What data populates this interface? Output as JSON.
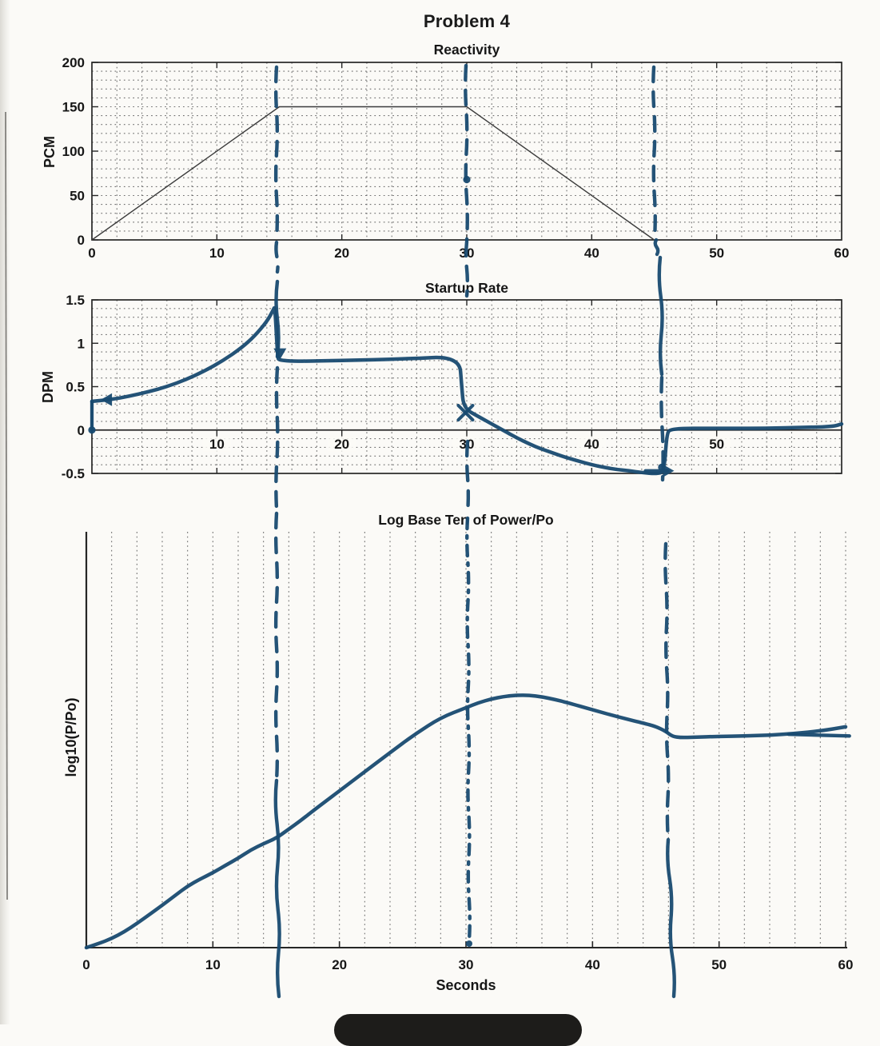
{
  "page": {
    "title": "Problem 4"
  },
  "colors": {
    "hand_ink": "#184a70",
    "printed_line": "#3b3b3b",
    "axis": "#262626",
    "grid_dot": "#6f6f6f",
    "text": "#161616",
    "page_bg": "#fbfaf7",
    "pill": "#1d1c1a",
    "scan_edge": "#54524e"
  },
  "chart_data": [
    {
      "id": "reactivity",
      "type": "line",
      "title": "Reactivity",
      "ylabel": "PCM",
      "xlabel": "",
      "xlim": [
        0,
        60
      ],
      "ylim": [
        0,
        200
      ],
      "xticks": [
        0,
        10,
        20,
        30,
        40,
        50,
        60
      ],
      "yticks": [
        0,
        50,
        100,
        150,
        200
      ],
      "grid": "dotted, 2 s vertical x 10 PCM horizontal, boxed axes",
      "printed_series": {
        "name": "reactivity-program-pcm",
        "points": [
          [
            0,
            0
          ],
          [
            15,
            150
          ],
          [
            30,
            150
          ],
          [
            45,
            0
          ],
          [
            60,
            0
          ]
        ]
      },
      "hand_marks": [
        {
          "type": "dot",
          "at": [
            30,
            68
          ]
        }
      ]
    },
    {
      "id": "startup_rate",
      "type": "line",
      "title": "Startup Rate",
      "ylabel": "DPM",
      "xlabel": "",
      "xlim": [
        0,
        60
      ],
      "ylim": [
        -0.5,
        1.5
      ],
      "inner_xticks": [
        10,
        20,
        30,
        40,
        50
      ],
      "yticks": [
        -0.5,
        0,
        0.5,
        1,
        1.5
      ],
      "grid": "dotted, 2 s vertical x 0.1 DPM horizontal, boxed axes, solid zero line",
      "hand_series": {
        "name": "startup-rate-dpm-hand-drawn",
        "points": [
          [
            0,
            0.33
          ],
          [
            1.5,
            0.35
          ],
          [
            3,
            0.39
          ],
          [
            4.5,
            0.44
          ],
          [
            6,
            0.5
          ],
          [
            7.5,
            0.58
          ],
          [
            9,
            0.68
          ],
          [
            10.5,
            0.8
          ],
          [
            12,
            0.95
          ],
          [
            13,
            1.08
          ],
          [
            14,
            1.25
          ],
          [
            14.5,
            1.38
          ],
          [
            14.65,
            1.43
          ],
          [
            14.85,
            0.85
          ],
          [
            15,
            0.79
          ],
          [
            20,
            0.8
          ],
          [
            25,
            0.82
          ],
          [
            29.4,
            0.85
          ],
          [
            29.6,
            0.5
          ],
          [
            29.75,
            0.25
          ],
          [
            31,
            0.15
          ],
          [
            32,
            0.07
          ],
          [
            33,
            -0.01
          ],
          [
            34,
            -0.09
          ],
          [
            35,
            -0.16
          ],
          [
            36,
            -0.22
          ],
          [
            37,
            -0.27
          ],
          [
            38,
            -0.32
          ],
          [
            39,
            -0.36
          ],
          [
            40,
            -0.4
          ],
          [
            41,
            -0.43
          ],
          [
            42,
            -0.455
          ],
          [
            43,
            -0.47
          ],
          [
            44,
            -0.49
          ],
          [
            45.2,
            -0.505
          ],
          [
            45.8,
            -0.48
          ],
          [
            46,
            -0.05
          ],
          [
            46.3,
            0.02
          ],
          [
            50,
            0.02
          ],
          [
            54,
            0.02
          ],
          [
            57,
            0.03
          ],
          [
            59.3,
            0.04
          ],
          [
            60,
            0.07
          ]
        ]
      },
      "hand_marks": [
        {
          "type": "dot",
          "at": [
            0,
            0
          ]
        },
        {
          "type": "stroke",
          "from": [
            0,
            0
          ],
          "to": [
            0,
            0.33
          ]
        },
        {
          "type": "arrow",
          "at": [
            0.9,
            0.35
          ],
          "dir": "left"
        },
        {
          "type": "arrow",
          "at": [
            15.05,
            0.84
          ],
          "dir": "down"
        },
        {
          "type": "x",
          "at": [
            29.9,
            0.2
          ]
        },
        {
          "type": "stroke",
          "from": [
            44.3,
            -0.47
          ],
          "to": [
            46.1,
            -0.47
          ]
        },
        {
          "type": "arrow",
          "at": [
            46.4,
            -0.47
          ],
          "dir": "right"
        },
        {
          "type": "dot",
          "at": [
            45.6,
            -0.43
          ]
        }
      ]
    },
    {
      "id": "log_power",
      "type": "line",
      "title": "Log Base Ten of Power/Po",
      "ylabel": "log10(P/Po)",
      "xlabel": "Seconds",
      "xlim": [
        0,
        60
      ],
      "xticks": [
        0,
        10,
        20,
        30,
        40,
        50,
        60
      ],
      "yticks": [],
      "y_units": "unlabeled axis, values normalized 0-1 of plot height",
      "grid": "dotted vertical lines every 2 s only, open top/right",
      "hand_series": {
        "name": "log-power-hand-drawn",
        "points": [
          [
            0,
            0
          ],
          [
            1,
            0.01
          ],
          [
            2,
            0.022
          ],
          [
            3,
            0.038
          ],
          [
            4,
            0.058
          ],
          [
            5,
            0.08
          ],
          [
            6,
            0.102
          ],
          [
            7,
            0.125
          ],
          [
            8,
            0.148
          ],
          [
            9,
            0.165
          ],
          [
            10,
            0.18
          ],
          [
            11,
            0.198
          ],
          [
            12,
            0.215
          ],
          [
            13,
            0.235
          ],
          [
            14,
            0.25
          ],
          [
            15,
            0.263
          ],
          [
            16,
            0.285
          ],
          [
            17,
            0.307
          ],
          [
            18,
            0.331
          ],
          [
            19,
            0.354
          ],
          [
            20,
            0.377
          ],
          [
            22,
            0.423
          ],
          [
            24,
            0.469
          ],
          [
            26,
            0.514
          ],
          [
            28,
            0.553
          ],
          [
            30,
            0.577
          ],
          [
            31,
            0.589
          ],
          [
            32,
            0.598
          ],
          [
            33,
            0.604
          ],
          [
            34,
            0.607
          ],
          [
            35,
            0.607
          ],
          [
            36,
            0.603
          ],
          [
            37,
            0.597
          ],
          [
            38,
            0.589
          ],
          [
            40,
            0.572
          ],
          [
            42,
            0.555
          ],
          [
            44,
            0.54
          ],
          [
            45,
            0.532
          ],
          [
            45.8,
            0.52
          ],
          [
            46.3,
            0.508
          ],
          [
            47,
            0.505
          ],
          [
            48,
            0.506
          ],
          [
            50,
            0.508
          ],
          [
            52,
            0.509
          ],
          [
            54,
            0.511
          ],
          [
            56,
            0.515
          ],
          [
            58,
            0.521
          ],
          [
            60,
            0.531
          ]
        ]
      },
      "hand_marks": [
        {
          "type": "stroke",
          "from": [
            55.5,
            0.513
          ],
          "to": [
            60.3,
            0.509
          ]
        }
      ]
    }
  ],
  "hand_annotations": {
    "description": "blue marker dashed vertical guide lines at t = 15, 30 and ~46 s drawn across all three plots",
    "lines": [
      {
        "t": 15,
        "segments": [
          [
            346,
            84,
            346,
            300,
            "dashed"
          ],
          [
            346,
            303,
            347,
            340,
            "dashed"
          ],
          [
            347,
            352,
            347,
            446,
            "solid"
          ],
          [
            347,
            460,
            346,
            636,
            "dashed"
          ],
          [
            346,
            642,
            346,
            976,
            "dashed"
          ],
          [
            346,
            976,
            349,
            1246,
            "solid"
          ]
        ],
        "dots": []
      },
      {
        "t": 30,
        "segments": [
          [
            583,
            82,
            584,
            300,
            "dashed"
          ],
          [
            584,
            302,
            584,
            370,
            "dashed"
          ],
          [
            585,
            552,
            585,
            642,
            "dashed"
          ],
          [
            585,
            648,
            587,
            1176,
            "dashdot"
          ]
        ],
        "dots": [
          [
            587,
            1180
          ]
        ]
      },
      {
        "t": 46,
        "segments": [
          [
            818,
            84,
            819,
            298,
            "dashed"
          ],
          [
            821,
            300,
            822,
            318,
            "solid"
          ],
          [
            826,
            322,
            828,
            468,
            "solid"
          ],
          [
            828,
            472,
            829,
            600,
            "dashed"
          ],
          [
            833,
            680,
            836,
            1050,
            "dashed"
          ],
          [
            836,
            1050,
            843,
            1246,
            "solid"
          ]
        ],
        "dots": []
      }
    ]
  },
  "artifacts": {
    "left_page_edge_visible": true,
    "bottom_black_pill_visible": true
  }
}
